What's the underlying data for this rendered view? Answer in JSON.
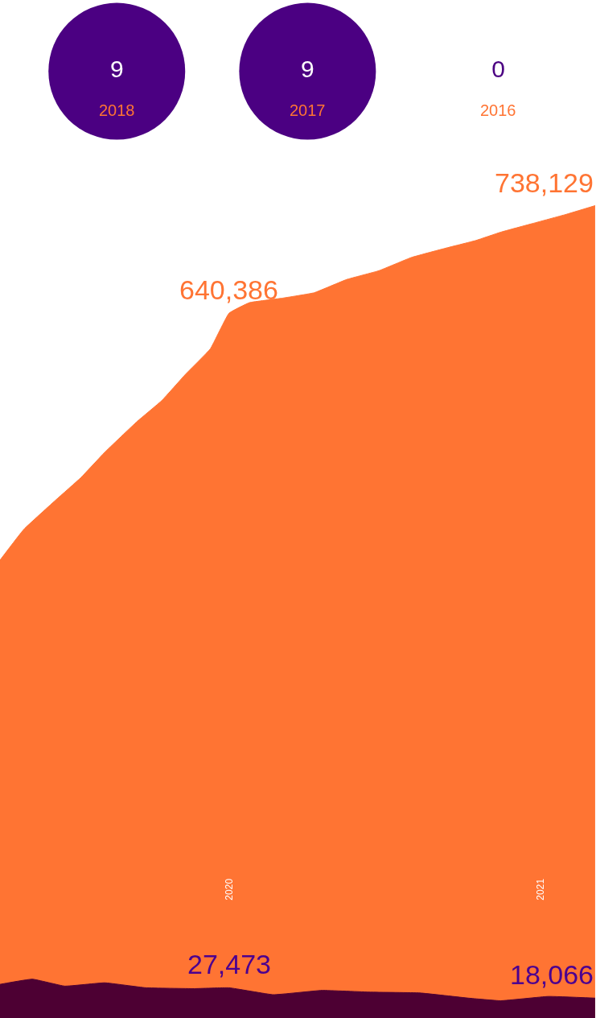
{
  "chart_data": [
    {
      "type": "other",
      "categories": [
        "2018",
        "2017",
        "2016"
      ],
      "values": [
        9,
        9,
        0
      ],
      "color": "#4b0082",
      "data_labels": true
    },
    {
      "type": "area",
      "xlim": [
        "2019-04-07",
        "2021-03-07"
      ],
      "xticks": [
        {
          "value": "2020-01-01",
          "label": "2020"
        },
        {
          "value": "2021-01-01",
          "label": "2021"
        }
      ],
      "tick_labels": "x",
      "legend": false,
      "series": [
        {
          "color": "#ff7433",
          "x": [
            "2019-04-07",
            "2019-05-05",
            "2019-06-12",
            "2019-07-11",
            "2019-08-08",
            "2019-09-15",
            "2019-10-14",
            "2019-11-11",
            "2019-12-10",
            "2020-01-01",
            "2020-01-25",
            "2020-03-03",
            "2020-04-10",
            "2020-05-18",
            "2020-06-25",
            "2020-08-02",
            "2020-09-09",
            "2020-10-17",
            "2020-11-15",
            "2020-12-23",
            "2021-01-30",
            "2021-03-06"
          ],
          "values": [
            416000,
            444000,
            471000,
            491000,
            514000,
            542000,
            561000,
            585000,
            608000,
            640386,
            650000,
            654000,
            659000,
            671000,
            679000,
            691000,
            699000,
            706500,
            714000,
            722000,
            730000,
            738129
          ],
          "value_labels": [
            null,
            null,
            null,
            null,
            null,
            null,
            null,
            null,
            null,
            "640,386",
            null,
            null,
            null,
            null,
            null,
            null,
            null,
            null,
            null,
            null,
            null,
            "738,129"
          ]
        },
        {
          "color": "#4d0033",
          "x": [
            "2019-04-07",
            "2019-05-15",
            "2019-06-22",
            "2019-08-08",
            "2019-09-25",
            "2019-11-21",
            "2020-01-01",
            "2020-02-22",
            "2020-04-19",
            "2020-06-15",
            "2020-08-12",
            "2020-10-08",
            "2020-11-15",
            "2021-01-10",
            "2021-03-06"
          ],
          "values": [
            30600,
            35300,
            29000,
            32000,
            27500,
            26700,
            27473,
            21200,
            25100,
            23500,
            22800,
            18100,
            15700,
            19600,
            18066
          ],
          "value_labels": [
            null,
            null,
            null,
            null,
            null,
            null,
            "27,473",
            null,
            null,
            null,
            null,
            null,
            null,
            null,
            "18,066"
          ]
        }
      ]
    }
  ]
}
